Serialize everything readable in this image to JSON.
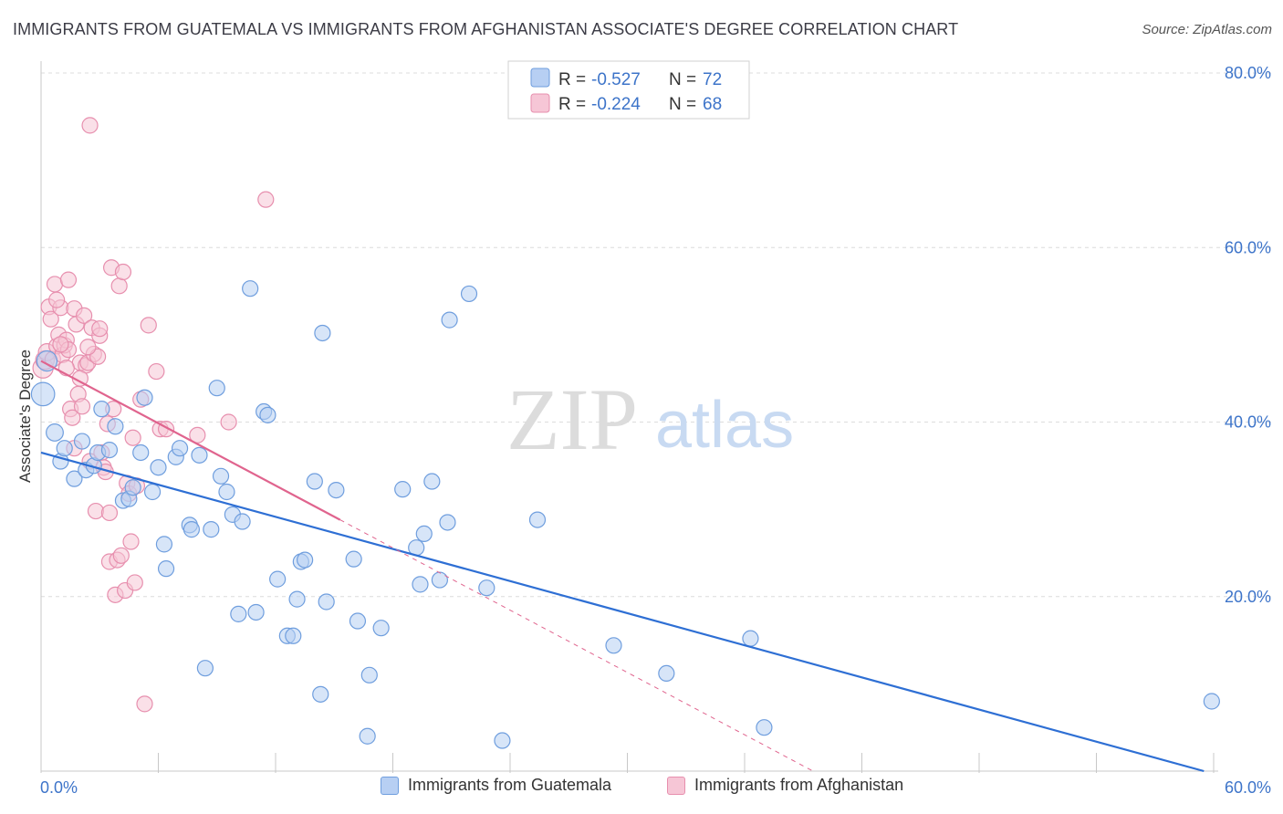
{
  "title": "IMMIGRANTS FROM GUATEMALA VS IMMIGRANTS FROM AFGHANISTAN ASSOCIATE'S DEGREE CORRELATION CHART",
  "source": "Source: ZipAtlas.com",
  "watermark": {
    "zip": "ZIP",
    "atlas": "atlas"
  },
  "colors": {
    "guatemala_fill": "#b7cff3",
    "guatemala_stroke": "#6f9ede",
    "guatemala_line": "#2e6fd4",
    "afghanistan_fill": "#f6c6d6",
    "afghanistan_stroke": "#e78fae",
    "afghanistan_line": "#e0648e",
    "axis_text": "#3d74c9",
    "grid": "#dcdcdc"
  },
  "legend_box": {
    "rows": [
      {
        "r_label": "R = ",
        "r_value": "-0.527",
        "n_label": "N = ",
        "n_value": "72"
      },
      {
        "r_label": "R = ",
        "r_value": "-0.224",
        "n_label": "N = ",
        "n_value": "68"
      }
    ]
  },
  "chart_data": {
    "type": "scatter",
    "title": "IMMIGRANTS FROM GUATEMALA VS IMMIGRANTS FROM AFGHANISTAN ASSOCIATE'S DEGREE CORRELATION CHART",
    "xlabel": "",
    "ylabel": "Associate's Degree",
    "xlim": [
      0,
      60
    ],
    "ylim": [
      0,
      80
    ],
    "x_tick_labels": [
      "0.0%",
      "60.0%"
    ],
    "y_tick_labels": [
      "20.0%",
      "40.0%",
      "60.0%",
      "80.0%"
    ],
    "y_ticks": [
      20,
      40,
      60,
      80
    ],
    "grid": true,
    "legend_position": "top-center",
    "series": [
      {
        "name": "Immigrants from Guatemala",
        "r": -0.527,
        "n": 72,
        "trend": {
          "x": [
            0,
            59.5
          ],
          "y": [
            36.5,
            0
          ]
        },
        "points": [
          [
            0.1,
            43.2,
            1.5
          ],
          [
            0.3,
            47.0,
            1.3
          ],
          [
            0.7,
            38.8,
            1.1
          ],
          [
            1.0,
            35.5,
            1.0
          ],
          [
            1.2,
            37.0,
            1.0
          ],
          [
            1.7,
            33.5,
            1.0
          ],
          [
            2.1,
            37.8,
            1.0
          ],
          [
            2.3,
            34.5,
            1.0
          ],
          [
            2.7,
            35.0,
            1.0
          ],
          [
            2.9,
            36.5,
            1.0
          ],
          [
            3.1,
            41.5,
            1.0
          ],
          [
            3.5,
            36.8,
            1.0
          ],
          [
            3.8,
            39.5,
            1.0
          ],
          [
            4.2,
            31.0,
            1.0
          ],
          [
            4.5,
            31.2,
            1.0
          ],
          [
            4.7,
            32.5,
            1.0
          ],
          [
            5.1,
            36.5,
            1.0
          ],
          [
            5.3,
            42.8,
            1.0
          ],
          [
            5.7,
            32.0,
            1.0
          ],
          [
            6.0,
            34.8,
            1.0
          ],
          [
            6.3,
            26.0,
            1.0
          ],
          [
            6.4,
            23.2,
            1.0
          ],
          [
            6.9,
            36.0,
            1.0
          ],
          [
            7.1,
            37.0,
            1.0
          ],
          [
            7.6,
            28.2,
            1.0
          ],
          [
            7.7,
            27.7,
            1.0
          ],
          [
            8.1,
            36.2,
            1.0
          ],
          [
            8.4,
            11.8,
            1.0
          ],
          [
            8.7,
            27.7,
            1.0
          ],
          [
            9.0,
            43.9,
            1.0
          ],
          [
            9.2,
            33.8,
            1.0
          ],
          [
            9.5,
            32.0,
            1.0
          ],
          [
            9.8,
            29.4,
            1.0
          ],
          [
            10.1,
            18.0,
            1.0
          ],
          [
            10.3,
            28.6,
            1.0
          ],
          [
            10.7,
            55.3,
            1.0
          ],
          [
            11.0,
            18.2,
            1.0
          ],
          [
            11.4,
            41.2,
            1.0
          ],
          [
            11.6,
            40.8,
            1.0
          ],
          [
            12.1,
            22.0,
            1.0
          ],
          [
            12.6,
            15.5,
            1.0
          ],
          [
            12.9,
            15.5,
            1.0
          ],
          [
            13.1,
            19.7,
            1.0
          ],
          [
            13.3,
            24.0,
            1.0
          ],
          [
            13.5,
            24.2,
            1.0
          ],
          [
            14.0,
            33.2,
            1.0
          ],
          [
            14.3,
            8.8,
            1.0
          ],
          [
            14.4,
            50.2,
            1.0
          ],
          [
            14.6,
            19.4,
            1.0
          ],
          [
            15.1,
            32.2,
            1.0
          ],
          [
            16.0,
            24.3,
            1.0
          ],
          [
            16.2,
            17.2,
            1.0
          ],
          [
            16.7,
            4.0,
            1.0
          ],
          [
            16.8,
            11.0,
            1.0
          ],
          [
            17.4,
            16.4,
            1.0
          ],
          [
            18.5,
            32.3,
            1.0
          ],
          [
            19.2,
            25.6,
            1.0
          ],
          [
            19.4,
            21.4,
            1.0
          ],
          [
            19.6,
            27.2,
            1.0
          ],
          [
            20.0,
            33.2,
            1.0
          ],
          [
            20.4,
            21.9,
            1.0
          ],
          [
            20.8,
            28.5,
            1.0
          ],
          [
            20.9,
            51.7,
            1.0
          ],
          [
            21.9,
            54.7,
            1.0
          ],
          [
            22.8,
            21.0,
            1.0
          ],
          [
            23.6,
            3.5,
            1.0
          ],
          [
            25.4,
            28.8,
            1.0
          ],
          [
            29.3,
            14.4,
            1.0
          ],
          [
            32.0,
            11.2,
            1.0
          ],
          [
            36.3,
            15.2,
            1.0
          ],
          [
            37.0,
            5.0,
            1.0
          ],
          [
            59.9,
            8.0,
            1.0
          ]
        ]
      },
      {
        "name": "Immigrants from Afghanistan",
        "r": -0.224,
        "n": 68,
        "trend": {
          "x": [
            0,
            15.3
          ],
          "y": [
            47.0,
            28.8
          ]
        },
        "trend_extension": {
          "x": [
            15.3,
            39.5
          ],
          "y": [
            28.8,
            0
          ]
        },
        "points": [
          [
            0.1,
            46.2,
            1.3
          ],
          [
            0.2,
            47.1,
            1.2
          ],
          [
            0.3,
            48.0,
            1.1
          ],
          [
            0.4,
            53.2,
            1.0
          ],
          [
            0.5,
            51.8,
            1.0
          ],
          [
            0.6,
            47.2,
            1.0
          ],
          [
            0.7,
            55.8,
            1.0
          ],
          [
            0.8,
            48.7,
            1.0
          ],
          [
            0.9,
            50.0,
            1.0
          ],
          [
            1.0,
            53.1,
            1.0
          ],
          [
            1.1,
            47.7,
            1.0
          ],
          [
            1.2,
            48.8,
            1.0
          ],
          [
            1.3,
            49.4,
            1.0
          ],
          [
            1.4,
            56.3,
            1.0
          ],
          [
            1.5,
            41.5,
            1.0
          ],
          [
            1.6,
            40.5,
            1.0
          ],
          [
            1.7,
            53.0,
            1.0
          ],
          [
            1.8,
            51.2,
            1.0
          ],
          [
            1.9,
            43.2,
            1.0
          ],
          [
            2.0,
            46.8,
            1.0
          ],
          [
            2.1,
            41.8,
            1.0
          ],
          [
            2.2,
            52.2,
            1.0
          ],
          [
            2.3,
            46.5,
            1.0
          ],
          [
            2.4,
            46.8,
            1.0
          ],
          [
            2.5,
            35.5,
            1.0
          ],
          [
            2.6,
            50.8,
            1.0
          ],
          [
            2.7,
            47.8,
            1.0
          ],
          [
            2.8,
            29.8,
            1.0
          ],
          [
            2.9,
            47.5,
            1.0
          ],
          [
            3.0,
            49.9,
            1.0
          ],
          [
            3.1,
            36.5,
            1.0
          ],
          [
            3.2,
            34.8,
            1.0
          ],
          [
            3.3,
            34.3,
            1.0
          ],
          [
            3.4,
            39.8,
            1.0
          ],
          [
            3.5,
            24.0,
            1.0
          ],
          [
            3.6,
            57.7,
            1.0
          ],
          [
            3.7,
            41.5,
            1.0
          ],
          [
            3.8,
            20.2,
            1.0
          ],
          [
            3.9,
            24.2,
            1.0
          ],
          [
            4.0,
            55.6,
            1.0
          ],
          [
            4.1,
            24.7,
            1.0
          ],
          [
            4.2,
            57.2,
            1.0
          ],
          [
            4.3,
            20.7,
            1.0
          ],
          [
            4.4,
            33.0,
            1.0
          ],
          [
            4.5,
            31.8,
            1.0
          ],
          [
            4.6,
            26.3,
            1.0
          ],
          [
            4.7,
            38.2,
            1.0
          ],
          [
            4.8,
            21.6,
            1.0
          ],
          [
            5.1,
            42.6,
            1.0
          ],
          [
            5.3,
            7.7,
            1.0
          ],
          [
            5.5,
            51.1,
            1.0
          ],
          [
            5.9,
            45.8,
            1.0
          ],
          [
            6.1,
            39.2,
            1.0
          ],
          [
            6.4,
            39.2,
            1.0
          ],
          [
            8.0,
            38.5,
            1.0
          ],
          [
            9.6,
            40.0,
            1.0
          ],
          [
            11.5,
            65.5,
            1.0
          ],
          [
            2.5,
            74.0,
            1.0
          ],
          [
            1.4,
            48.3,
            1.0
          ],
          [
            0.8,
            54.0,
            1.0
          ],
          [
            2.0,
            45.0,
            1.0
          ],
          [
            3.0,
            50.7,
            1.0
          ],
          [
            1.7,
            37.0,
            1.0
          ],
          [
            2.4,
            48.6,
            1.0
          ],
          [
            1.0,
            48.9,
            1.0
          ],
          [
            3.5,
            29.6,
            1.0
          ],
          [
            4.9,
            32.7,
            1.0
          ],
          [
            1.3,
            46.2,
            1.0
          ]
        ]
      }
    ]
  },
  "bottom_legend": [
    {
      "label": "Immigrants from Guatemala"
    },
    {
      "label": "Immigrants from Afghanistan"
    }
  ]
}
